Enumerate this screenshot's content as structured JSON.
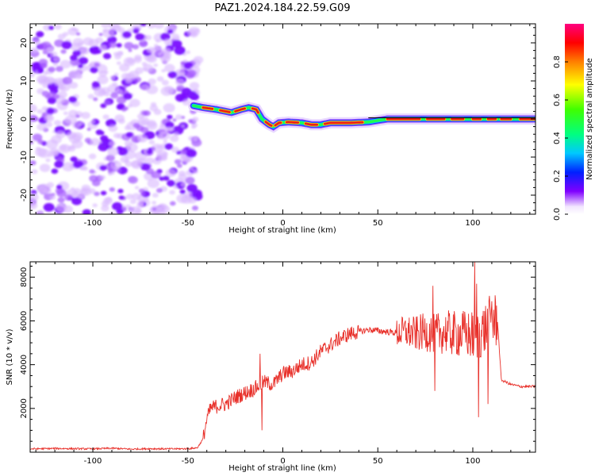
{
  "title": "PAZ1.2024.184.22.59.G09",
  "chart_data": [
    {
      "type": "heatmap",
      "xlabel": "Height of straight line (km)",
      "ylabel": "Frequency (Hz)",
      "xlim": [
        -133,
        133
      ],
      "ylim": [
        -25,
        25
      ],
      "xticks": [
        -100,
        -50,
        0,
        50,
        100
      ],
      "yticks": [
        -20,
        -10,
        0,
        10,
        20
      ],
      "colorbar": {
        "label": "Normalized spectral amplitude",
        "range": [
          0,
          1
        ],
        "ticks": [
          "0.0",
          "0.2",
          "0.4",
          "0.6",
          "0.8"
        ],
        "colormap": "gist_rainbow_r"
      },
      "ridge": {
        "x": [
          -47,
          -42,
          -35,
          -30,
          -27,
          -22,
          -18,
          -14,
          -11,
          -7,
          -5,
          -2,
          3,
          10,
          15,
          20,
          25,
          35,
          45,
          55,
          65,
          75,
          85,
          95,
          105,
          115,
          125,
          133
        ],
        "freq": [
          3.5,
          3.0,
          2.5,
          2.0,
          1.7,
          2.5,
          3.0,
          2.5,
          0.0,
          -1.5,
          -2.0,
          -1.0,
          -0.8,
          -1.0,
          -1.5,
          -1.5,
          -1.0,
          -1.0,
          -0.8,
          0.0,
          0.0,
          0.0,
          0.0,
          0.0,
          0.0,
          0.0,
          0.0,
          0.0
        ]
      },
      "noise_region_x": [
        -133,
        -47
      ]
    },
    {
      "type": "line",
      "xlabel": "Height of straight line (km)",
      "ylabel": "SNR (10 * v/v)",
      "xlim": [
        -133,
        133
      ],
      "ylim": [
        0,
        8700
      ],
      "xticks": [
        -100,
        -50,
        0,
        50,
        100
      ],
      "yticks": [
        2000,
        4000,
        6000,
        8000
      ],
      "color": "#e8302a",
      "series": [
        {
          "x": [
            -133,
            -120,
            -110,
            -100,
            -90,
            -80,
            -70,
            -60,
            -50,
            -45,
            -42,
            -40,
            -38,
            -35,
            -30,
            -25,
            -20,
            -15,
            -10,
            -5,
            0,
            5,
            10,
            15,
            20,
            25,
            30,
            35,
            40,
            45,
            50,
            55,
            60,
            65,
            70,
            75,
            80,
            85,
            90,
            95,
            100,
            105,
            110,
            113,
            115,
            120,
            125,
            133
          ],
          "values": [
            150,
            170,
            160,
            150,
            180,
            140,
            160,
            150,
            160,
            200,
            600,
            1500,
            2000,
            2100,
            2200,
            2500,
            2700,
            2900,
            3200,
            3100,
            3600,
            3700,
            4000,
            4100,
            4600,
            4900,
            5200,
            5400,
            5500,
            5600,
            5550,
            5500,
            5450,
            5500,
            5400,
            5500,
            5400,
            5500,
            5400,
            5400,
            5300,
            5500,
            6000,
            6000,
            3300,
            3100,
            3000,
            3000
          ]
        }
      ],
      "annotations_spikes": [
        {
          "x": -11,
          "value": 1000
        },
        {
          "x": -12,
          "value": 4500
        },
        {
          "x": 79,
          "value": 7600
        },
        {
          "x": 80,
          "value": 2800
        },
        {
          "x": 101,
          "value": 8700
        },
        {
          "x": 103,
          "value": 1600
        },
        {
          "x": 102,
          "value": 7700
        },
        {
          "x": 108,
          "value": 2200
        },
        {
          "x": 110,
          "value": 6900
        }
      ]
    }
  ]
}
